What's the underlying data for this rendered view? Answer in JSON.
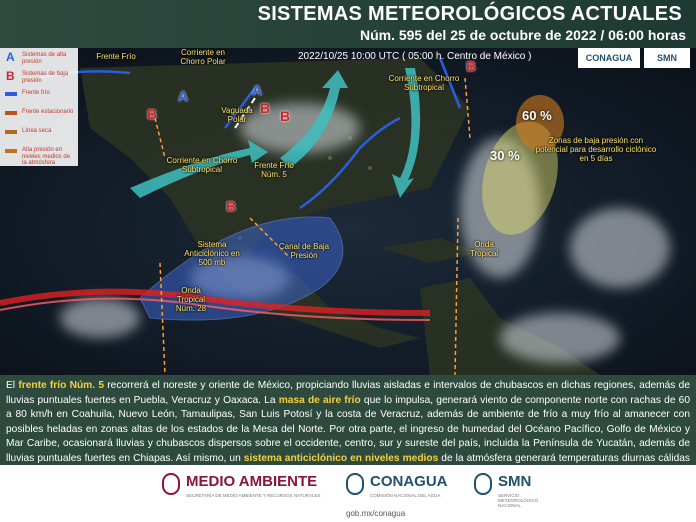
{
  "header": {
    "title": "SISTEMAS METEOROLÓGICOS ACTUALES",
    "subtitle": "Núm. 595 del 25 de octubre de 2022 / 06:00 horas"
  },
  "map": {
    "timestamp": "2022/10/25 10:00 UTC ( 05:00 h. Centro de México )",
    "logos": [
      "CONAGUA",
      "SMN"
    ],
    "legend": [
      {
        "symbol": "A",
        "label": "Sistemas de alta presión"
      },
      {
        "symbol": "B",
        "label": "Sistemas de baja presión"
      },
      {
        "label": "Frente frío"
      },
      {
        "label": "Frente estacionario"
      },
      {
        "label": "Línea seca"
      },
      {
        "label": "Alta presión en niveles medios de la atmósfera"
      }
    ],
    "labels": [
      "Frente Frío",
      "Corriente en Chorro Polar",
      "Vaguada Polar",
      "Corriente en Chorro Subtropical",
      "Frente Frío Núm. 5",
      "Sistema Anticiclónico en 500 mb",
      "Canal de Baja Presión",
      "Onda Tropical",
      "Onda Tropical Núm. 28",
      "Corriente en Chorro Subtropical",
      "Zonas de baja presión con potencial para desarrollo ciclónico en 5 días"
    ],
    "centers": [
      "A",
      "B",
      "A",
      "B",
      "B",
      "B",
      "B"
    ],
    "probabilities": [
      "60 %",
      "30 %"
    ]
  },
  "summary": [
    {
      "text": "El "
    },
    {
      "text": "frente frío Núm. 5",
      "highlight": true
    },
    {
      "text": " recorrerá el noreste y oriente de México, propiciando lluvias aisladas e intervalos de chubascos en dichas regiones, además de lluvias puntuales fuertes en Puebla, Veracruz y Oaxaca. La "
    },
    {
      "text": "masa de aire frío",
      "highlight": true
    },
    {
      "text": " que lo impulsa, generará viento de componente norte con rachas de 60 a 80 km/h en Coahuila, Nuevo León, Tamaulipas, San Luis Potosí y la costa de Veracruz, además de ambiente de frío a muy frío al amanecer con posibles heladas en zonas altas de los estados de la Mesa del Norte. Por otra parte, el ingreso de humedad del Océano Pacífico, Golfo de México y Mar Caribe, ocasionará lluvias y chubascos dispersos sobre el occidente, centro, sur y sureste del país, incluida la Península de Yucatán, además de lluvias puntuales fuertes en Chiapas. Así mismo, un "
    },
    {
      "text": "sistema anticiclónico en niveles medios",
      "highlight": true
    },
    {
      "text": " de la atmósfera generará temperaturas diurnas cálidas a calurosas sobre gran parte del territorio nacional."
    }
  ],
  "footer": {
    "logos": [
      {
        "name": "MEDIO AMBIENTE",
        "caption": "SECRETARÍA DE MEDIO AMBIENTE Y RECURSOS NATURALES"
      },
      {
        "name": "CONAGUA",
        "caption": "COMISIÓN NACIONAL DEL AGUA"
      },
      {
        "name": "SMN",
        "caption": "SERVICIO METEOROLÓGICO NACIONAL"
      }
    ],
    "website": "gob.mx/conagua"
  }
}
